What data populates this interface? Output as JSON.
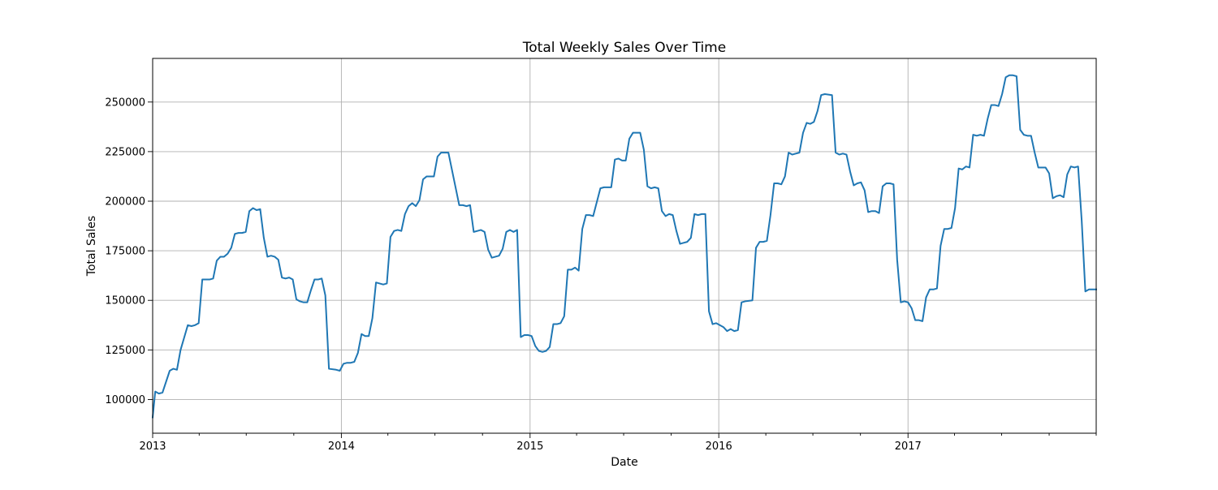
{
  "chart_data": {
    "type": "line",
    "title": "Total Weekly Sales Over Time",
    "xlabel": "Date",
    "ylabel": "Total Sales",
    "xlim": [
      "2013-01-01",
      "2017-12-31"
    ],
    "ylim": [
      83000,
      272000
    ],
    "grid": true,
    "x_ticks": [
      {
        "date": "2013-01-01",
        "label": "2013"
      },
      {
        "date": "2014-01-01",
        "label": "2014"
      },
      {
        "date": "2015-01-01",
        "label": "2015"
      },
      {
        "date": "2016-01-01",
        "label": "2016"
      },
      {
        "date": "2017-01-01",
        "label": "2017"
      }
    ],
    "x_minor_ticks": [
      "2013-04-01",
      "2013-07-01",
      "2013-10-01",
      "2014-04-01",
      "2014-07-01",
      "2014-10-01",
      "2015-04-01",
      "2015-07-01",
      "2015-10-01",
      "2016-04-01",
      "2016-07-01",
      "2016-10-01",
      "2017-04-01",
      "2017-07-01",
      "2017-10-01",
      "2017-12-31"
    ],
    "y_ticks": [
      {
        "value": 100000,
        "label": "100000"
      },
      {
        "value": 125000,
        "label": "125000"
      },
      {
        "value": 150000,
        "label": "150000"
      },
      {
        "value": 175000,
        "label": "175000"
      },
      {
        "value": 200000,
        "label": "200000"
      },
      {
        "value": 225000,
        "label": "225000"
      },
      {
        "value": 250000,
        "label": "250000"
      }
    ],
    "series": [
      {
        "color": "#1f77b4",
        "points": [
          [
            "2013-01-01",
            91000
          ],
          [
            "2013-01-06",
            104000
          ],
          [
            "2013-01-13",
            103000
          ],
          [
            "2013-01-20",
            103500
          ],
          [
            "2013-02-03",
            114500
          ],
          [
            "2013-02-10",
            115500
          ],
          [
            "2013-02-17",
            115000
          ],
          [
            "2013-02-24",
            125000
          ],
          [
            "2013-03-10",
            137500
          ],
          [
            "2013-03-17",
            137000
          ],
          [
            "2013-03-24",
            137500
          ],
          [
            "2013-03-31",
            138500
          ],
          [
            "2013-04-07",
            160500
          ],
          [
            "2013-04-21",
            160500
          ],
          [
            "2013-04-28",
            161000
          ],
          [
            "2013-05-05",
            170000
          ],
          [
            "2013-05-12",
            172000
          ],
          [
            "2013-05-19",
            172000
          ],
          [
            "2013-05-26",
            173500
          ],
          [
            "2013-06-02",
            176500
          ],
          [
            "2013-06-09",
            183500
          ],
          [
            "2013-06-16",
            184000
          ],
          [
            "2013-06-23",
            184000
          ],
          [
            "2013-06-30",
            184500
          ],
          [
            "2013-07-07",
            195000
          ],
          [
            "2013-07-14",
            196500
          ],
          [
            "2013-07-21",
            195500
          ],
          [
            "2013-07-28",
            196000
          ],
          [
            "2013-08-04",
            181500
          ],
          [
            "2013-08-11",
            172000
          ],
          [
            "2013-08-18",
            172500
          ],
          [
            "2013-08-25",
            172000
          ],
          [
            "2013-09-01",
            170500
          ],
          [
            "2013-09-08",
            161500
          ],
          [
            "2013-09-15",
            161000
          ],
          [
            "2013-09-22",
            161500
          ],
          [
            "2013-09-29",
            160500
          ],
          [
            "2013-10-06",
            150500
          ],
          [
            "2013-10-13",
            149500
          ],
          [
            "2013-10-20",
            149000
          ],
          [
            "2013-10-27",
            149000
          ],
          [
            "2013-11-03",
            155000
          ],
          [
            "2013-11-10",
            160500
          ],
          [
            "2013-11-17",
            160500
          ],
          [
            "2013-11-24",
            161000
          ],
          [
            "2013-12-01",
            152500
          ],
          [
            "2013-12-08",
            115500
          ],
          [
            "2013-12-22",
            115000
          ],
          [
            "2013-12-29",
            114500
          ],
          [
            "2014-01-05",
            118000
          ],
          [
            "2014-01-12",
            118500
          ],
          [
            "2014-01-19",
            118500
          ],
          [
            "2014-01-26",
            119000
          ],
          [
            "2014-02-02",
            123500
          ],
          [
            "2014-02-09",
            133000
          ],
          [
            "2014-02-16",
            132000
          ],
          [
            "2014-02-23",
            132000
          ],
          [
            "2014-03-02",
            141000
          ],
          [
            "2014-03-09",
            159000
          ],
          [
            "2014-03-23",
            158000
          ],
          [
            "2014-03-30",
            158500
          ],
          [
            "2014-04-06",
            182000
          ],
          [
            "2014-04-13",
            185000
          ],
          [
            "2014-04-20",
            185500
          ],
          [
            "2014-04-27",
            185000
          ],
          [
            "2014-05-04",
            193500
          ],
          [
            "2014-05-11",
            197500
          ],
          [
            "2014-05-18",
            199000
          ],
          [
            "2014-05-25",
            197500
          ],
          [
            "2014-06-01",
            200500
          ],
          [
            "2014-06-08",
            211000
          ],
          [
            "2014-06-15",
            212500
          ],
          [
            "2014-06-29",
            212500
          ],
          [
            "2014-07-06",
            222500
          ],
          [
            "2014-07-13",
            224500
          ],
          [
            "2014-07-27",
            224500
          ],
          [
            "2014-08-17",
            198000
          ],
          [
            "2014-08-24",
            198000
          ],
          [
            "2014-08-31",
            197500
          ],
          [
            "2014-09-07",
            198000
          ],
          [
            "2014-09-14",
            184500
          ],
          [
            "2014-09-21",
            185000
          ],
          [
            "2014-09-28",
            185500
          ],
          [
            "2014-10-05",
            184500
          ],
          [
            "2014-10-12",
            175500
          ],
          [
            "2014-10-19",
            171500
          ],
          [
            "2014-10-26",
            172000
          ],
          [
            "2014-11-02",
            172500
          ],
          [
            "2014-11-09",
            176000
          ],
          [
            "2014-11-16",
            184500
          ],
          [
            "2014-11-23",
            185500
          ],
          [
            "2014-11-30",
            184500
          ],
          [
            "2014-12-07",
            185500
          ],
          [
            "2014-12-14",
            131500
          ],
          [
            "2014-12-21",
            132500
          ],
          [
            "2014-12-28",
            132500
          ],
          [
            "2015-01-04",
            132000
          ],
          [
            "2015-01-11",
            127000
          ],
          [
            "2015-01-18",
            124500
          ],
          [
            "2015-01-25",
            124000
          ],
          [
            "2015-02-01",
            124500
          ],
          [
            "2015-02-08",
            126500
          ],
          [
            "2015-02-15",
            138000
          ],
          [
            "2015-02-22",
            138000
          ],
          [
            "2015-03-01",
            138500
          ],
          [
            "2015-03-08",
            142000
          ],
          [
            "2015-03-15",
            165500
          ],
          [
            "2015-03-22",
            165500
          ],
          [
            "2015-03-29",
            166500
          ],
          [
            "2015-04-05",
            165000
          ],
          [
            "2015-04-12",
            186000
          ],
          [
            "2015-04-19",
            193000
          ],
          [
            "2015-04-26",
            193000
          ],
          [
            "2015-05-03",
            192500
          ],
          [
            "2015-05-10",
            199500
          ],
          [
            "2015-05-17",
            206500
          ],
          [
            "2015-05-24",
            207000
          ],
          [
            "2015-06-07",
            207000
          ],
          [
            "2015-06-14",
            221000
          ],
          [
            "2015-06-21",
            221500
          ],
          [
            "2015-06-28",
            220500
          ],
          [
            "2015-07-05",
            220500
          ],
          [
            "2015-07-12",
            231500
          ],
          [
            "2015-07-19",
            234500
          ],
          [
            "2015-08-02",
            234500
          ],
          [
            "2015-08-09",
            226000
          ],
          [
            "2015-08-16",
            207500
          ],
          [
            "2015-08-23",
            206500
          ],
          [
            "2015-08-30",
            207000
          ],
          [
            "2015-09-06",
            206500
          ],
          [
            "2015-09-13",
            195000
          ],
          [
            "2015-09-20",
            192500
          ],
          [
            "2015-09-27",
            193500
          ],
          [
            "2015-10-04",
            193000
          ],
          [
            "2015-10-11",
            185000
          ],
          [
            "2015-10-18",
            178500
          ],
          [
            "2015-10-25",
            179000
          ],
          [
            "2015-11-01",
            179500
          ],
          [
            "2015-11-08",
            181500
          ],
          [
            "2015-11-15",
            193500
          ],
          [
            "2015-11-22",
            193000
          ],
          [
            "2015-11-29",
            193500
          ],
          [
            "2015-12-06",
            193500
          ],
          [
            "2015-12-13",
            144500
          ],
          [
            "2015-12-20",
            138000
          ],
          [
            "2015-12-27",
            138500
          ],
          [
            "2016-01-03",
            137500
          ],
          [
            "2016-01-10",
            136500
          ],
          [
            "2016-01-17",
            134500
          ],
          [
            "2016-01-24",
            135500
          ],
          [
            "2016-01-31",
            134500
          ],
          [
            "2016-02-07",
            135000
          ],
          [
            "2016-02-14",
            149000
          ],
          [
            "2016-02-21",
            149500
          ],
          [
            "2016-03-06",
            150000
          ],
          [
            "2016-03-13",
            176500
          ],
          [
            "2016-03-20",
            179500
          ],
          [
            "2016-03-27",
            179500
          ],
          [
            "2016-04-03",
            180000
          ],
          [
            "2016-04-10",
            193000
          ],
          [
            "2016-04-17",
            209000
          ],
          [
            "2016-04-24",
            209000
          ],
          [
            "2016-05-01",
            208500
          ],
          [
            "2016-05-08",
            212500
          ],
          [
            "2016-05-15",
            224500
          ],
          [
            "2016-05-22",
            223500
          ],
          [
            "2016-05-29",
            224000
          ],
          [
            "2016-06-05",
            224500
          ],
          [
            "2016-06-12",
            234500
          ],
          [
            "2016-06-19",
            239500
          ],
          [
            "2016-06-26",
            239000
          ],
          [
            "2016-07-03",
            240000
          ],
          [
            "2016-07-10",
            245500
          ],
          [
            "2016-07-17",
            253500
          ],
          [
            "2016-07-24",
            254000
          ],
          [
            "2016-08-07",
            253500
          ],
          [
            "2016-08-14",
            224500
          ],
          [
            "2016-08-21",
            223500
          ],
          [
            "2016-08-28",
            224000
          ],
          [
            "2016-09-04",
            223500
          ],
          [
            "2016-09-11",
            215000
          ],
          [
            "2016-09-18",
            208000
          ],
          [
            "2016-09-25",
            209000
          ],
          [
            "2016-10-02",
            209500
          ],
          [
            "2016-10-09",
            205500
          ],
          [
            "2016-10-16",
            194500
          ],
          [
            "2016-10-23",
            195000
          ],
          [
            "2016-10-30",
            195000
          ],
          [
            "2016-11-06",
            194000
          ],
          [
            "2016-11-13",
            207500
          ],
          [
            "2016-11-20",
            209000
          ],
          [
            "2016-11-27",
            209000
          ],
          [
            "2016-12-04",
            208500
          ],
          [
            "2016-12-11",
            170500
          ],
          [
            "2016-12-18",
            149000
          ],
          [
            "2016-12-25",
            149500
          ],
          [
            "2017-01-01",
            149000
          ],
          [
            "2017-01-08",
            146000
          ],
          [
            "2017-01-15",
            140000
          ],
          [
            "2017-01-22",
            140000
          ],
          [
            "2017-01-29",
            139500
          ],
          [
            "2017-02-05",
            151500
          ],
          [
            "2017-02-12",
            155500
          ],
          [
            "2017-02-19",
            155500
          ],
          [
            "2017-02-26",
            156000
          ],
          [
            "2017-03-05",
            177500
          ],
          [
            "2017-03-12",
            186000
          ],
          [
            "2017-03-19",
            186000
          ],
          [
            "2017-03-26",
            186500
          ],
          [
            "2017-04-02",
            196500
          ],
          [
            "2017-04-09",
            216500
          ],
          [
            "2017-04-16",
            216000
          ],
          [
            "2017-04-23",
            217500
          ],
          [
            "2017-04-30",
            217000
          ],
          [
            "2017-05-07",
            233500
          ],
          [
            "2017-05-14",
            233000
          ],
          [
            "2017-05-21",
            233500
          ],
          [
            "2017-05-28",
            233000
          ],
          [
            "2017-06-04",
            241500
          ],
          [
            "2017-06-11",
            248500
          ],
          [
            "2017-06-18",
            248500
          ],
          [
            "2017-06-25",
            248000
          ],
          [
            "2017-07-02",
            254000
          ],
          [
            "2017-07-09",
            262500
          ],
          [
            "2017-07-16",
            263500
          ],
          [
            "2017-07-23",
            263500
          ],
          [
            "2017-07-30",
            263000
          ],
          [
            "2017-08-06",
            236000
          ],
          [
            "2017-08-13",
            233500
          ],
          [
            "2017-08-20",
            233000
          ],
          [
            "2017-08-27",
            233000
          ],
          [
            "2017-09-03",
            224500
          ],
          [
            "2017-09-10",
            217000
          ],
          [
            "2017-09-17",
            217000
          ],
          [
            "2017-09-24",
            217000
          ],
          [
            "2017-10-01",
            214000
          ],
          [
            "2017-10-08",
            201500
          ],
          [
            "2017-10-15",
            202500
          ],
          [
            "2017-10-22",
            203000
          ],
          [
            "2017-10-29",
            202000
          ],
          [
            "2017-11-05",
            213500
          ],
          [
            "2017-11-12",
            217500
          ],
          [
            "2017-11-19",
            217000
          ],
          [
            "2017-11-26",
            217500
          ],
          [
            "2017-12-03",
            190000
          ],
          [
            "2017-12-10",
            154500
          ],
          [
            "2017-12-17",
            155500
          ],
          [
            "2017-12-31",
            155500
          ]
        ]
      }
    ]
  }
}
